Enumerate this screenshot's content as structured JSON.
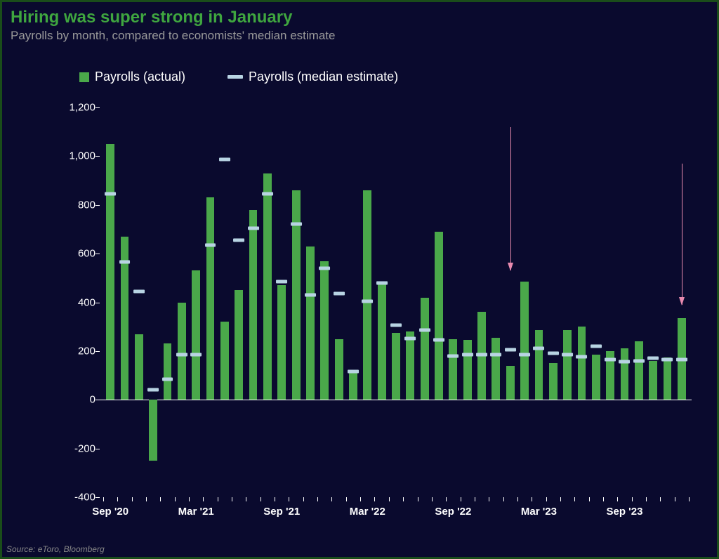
{
  "title": "Hiring was super strong in January",
  "title_color": "#3fa63f",
  "subtitle": "Payrolls by month, compared to economists' median estimate",
  "subtitle_color": "#9a9a9a",
  "background_color": "#0a0a2e",
  "source": "Source: eToro, Bloomberg",
  "legend": {
    "bar_label": "Payrolls (actual)",
    "line_label": "Payrolls (median estimate)"
  },
  "chart": {
    "type": "bar_with_markers",
    "bar_color": "#4aa84a",
    "estimate_color": "#b8d4e3",
    "arrow_color": "#e88aaf",
    "axis_text_color": "#ffffff",
    "ylim": [
      -400,
      1200
    ],
    "ytick_step": 200,
    "yticks": [
      -400,
      -200,
      0,
      200,
      400,
      600,
      800,
      1000,
      1200
    ],
    "bar_width_ratio": 0.58,
    "x_labels": [
      {
        "index": 0,
        "label": "Sep '20"
      },
      {
        "index": 6,
        "label": "Mar '21"
      },
      {
        "index": 12,
        "label": "Sep '21"
      },
      {
        "index": 18,
        "label": "Mar '22"
      },
      {
        "index": 24,
        "label": "Sep '22"
      },
      {
        "index": 30,
        "label": "Mar '23"
      },
      {
        "index": 36,
        "label": "Sep '23"
      }
    ],
    "arrows": [
      {
        "index": 28,
        "top_value": 1120,
        "bottom_value": 530
      },
      {
        "index": 40,
        "top_value": 970,
        "bottom_value": 390
      }
    ],
    "actual": [
      1050,
      670,
      270,
      -250,
      230,
      400,
      530,
      830,
      320,
      450,
      780,
      930,
      470,
      860,
      630,
      570,
      250,
      120,
      860,
      480,
      275,
      280,
      420,
      690,
      250,
      245,
      360,
      255,
      140,
      485,
      285,
      150,
      285,
      300,
      185,
      200,
      210,
      240,
      160,
      175,
      335
    ],
    "estimate": [
      860,
      580,
      460,
      55,
      100,
      200,
      200,
      650,
      1000,
      670,
      720,
      860,
      500,
      735,
      445,
      555,
      450,
      130,
      420,
      495,
      320,
      265,
      300,
      260,
      195,
      200,
      200,
      200,
      220,
      200,
      225,
      205,
      200,
      190,
      235,
      180,
      170,
      175,
      185,
      180,
      180
    ]
  }
}
